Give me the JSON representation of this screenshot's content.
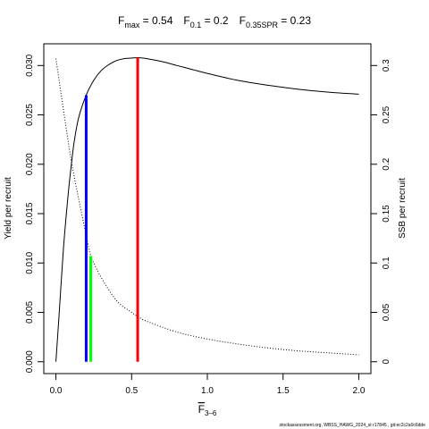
{
  "chart_data": {
    "type": "line",
    "title": {
      "parts": [
        {
          "main": "F",
          "sub": "max",
          "rest": " = 0.54"
        },
        {
          "main": "F",
          "sub": "0.1",
          "rest": " = 0.2"
        },
        {
          "main": "F",
          "sub": "0.35SPR",
          "rest": " = 0.23"
        }
      ]
    },
    "xlabel": {
      "main": "F",
      "overline": true,
      "sub": "3–6"
    },
    "ylabel_left": "Yield per recruit",
    "ylabel_right": "SSB per recruit",
    "xlim": [
      -0.08,
      2.08
    ],
    "ylim_left": [
      -0.0012,
      0.0322
    ],
    "ylim_right": [
      -0.012,
      0.322
    ],
    "x_ticks": [
      0,
      0.5,
      1,
      1.5,
      2
    ],
    "x_tick_labels": [
      "0.0",
      "0.5",
      "1.0",
      "1.5",
      "2.0"
    ],
    "y_left_ticks": [
      0,
      0.005,
      0.01,
      0.015,
      0.02,
      0.025,
      0.03
    ],
    "y_left_tick_labels": [
      "0.000",
      "0.005",
      "0.010",
      "0.015",
      "0.020",
      "0.025",
      "0.030"
    ],
    "y_right_ticks": [
      0,
      0.05,
      0.1,
      0.15,
      0.2,
      0.25,
      0.3
    ],
    "y_right_tick_labels": [
      "0",
      "0.05",
      "0.1",
      "0.15",
      "0.2",
      "0.25",
      "0.3"
    ],
    "grid": false,
    "series": [
      {
        "axis": "left",
        "style": "solid",
        "color": "#000000",
        "x": [
          0,
          0.02,
          0.05,
          0.08,
          0.1,
          0.12,
          0.15,
          0.2,
          0.25,
          0.3,
          0.35,
          0.4,
          0.45,
          0.5,
          0.54,
          0.6,
          0.7,
          0.8,
          0.9,
          1.0,
          1.2,
          1.4,
          1.6,
          1.8,
          2.0
        ],
        "y": [
          0,
          0.0045,
          0.0115,
          0.0168,
          0.0197,
          0.0222,
          0.0247,
          0.027,
          0.0285,
          0.0295,
          0.0301,
          0.0305,
          0.0307,
          0.03075,
          0.0308,
          0.0307,
          0.0304,
          0.03,
          0.0296,
          0.0292,
          0.0285,
          0.028,
          0.0276,
          0.0273,
          0.0271
        ]
      },
      {
        "axis": "right",
        "style": "dotted",
        "color": "#000000",
        "x": [
          0,
          0.05,
          0.1,
          0.15,
          0.2,
          0.23,
          0.25,
          0.3,
          0.4,
          0.5,
          0.54,
          0.6,
          0.8,
          1.0,
          1.2,
          1.4,
          1.6,
          1.8,
          2.0
        ],
        "y": [
          0.307,
          0.255,
          0.205,
          0.165,
          0.128,
          0.107,
          0.1,
          0.085,
          0.062,
          0.05,
          0.046,
          0.041,
          0.03,
          0.023,
          0.018,
          0.014,
          0.011,
          0.009,
          0.007
        ]
      }
    ],
    "reference_lines": [
      {
        "label": "F0.1",
        "x": 0.2,
        "y": 0.027,
        "color": "#0000ff"
      },
      {
        "label": "F0.35SPR",
        "x": 0.23,
        "y": 0.0107,
        "color": "#00ff00"
      },
      {
        "label": "Fmax",
        "x": 0.54,
        "y": 0.0308,
        "color": "#ff0000"
      }
    ]
  },
  "footer": "stockassessment.org, WBSS_HAWG_2024_st r17845 , git:ec2c2a0c6dde"
}
